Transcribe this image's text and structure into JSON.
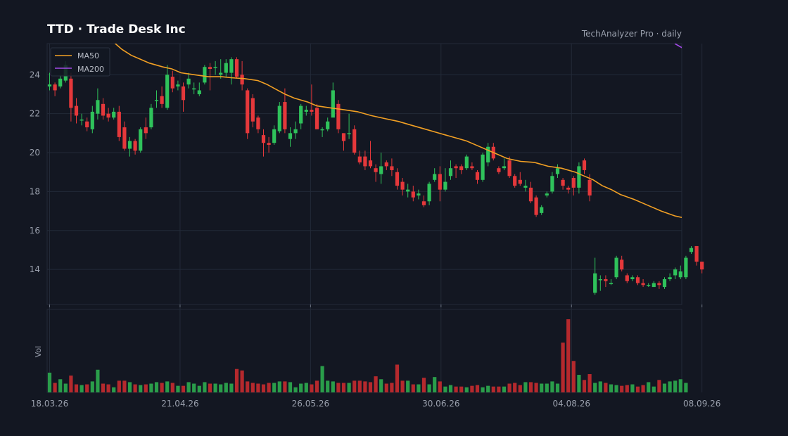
{
  "header": {
    "title": "TTD  ·  Trade Desk Inc",
    "source": "TechAnalyzer Pro · daily"
  },
  "colors": {
    "background": "#131722",
    "grid": "#232a38",
    "up": "#2fc25b",
    "down": "#e5383b",
    "ma50": "#f2a024",
    "ma200": "#a24ae8"
  },
  "chart_data": {
    "type": "candlestick",
    "symbol": "TTD",
    "interval": "daily",
    "ylim": [
      12.2,
      25.6
    ],
    "y_ticks": [
      14,
      16,
      18,
      20,
      22,
      24
    ],
    "volume_label": "Vol",
    "x_ticks": [
      {
        "index": 0,
        "label": "18.03.26"
      },
      {
        "index": 25,
        "label": "21.04.26"
      },
      {
        "index": 50,
        "label": "26.05.26"
      },
      {
        "index": 75,
        "label": "30.06.26"
      },
      {
        "index": 100,
        "label": "04.08.26"
      },
      {
        "index": 125,
        "label": "08.09.26"
      }
    ],
    "legend": [
      "MA50",
      "MA200"
    ],
    "legend_position": "top-left",
    "candles": [
      [
        23.4,
        23.5,
        24.1,
        23.2
      ],
      [
        23.5,
        23.2,
        23.6,
        22.9
      ],
      [
        23.4,
        23.8,
        24.0,
        23.3
      ],
      [
        23.7,
        24.5,
        24.7,
        23.6
      ],
      [
        23.8,
        22.3,
        24.1,
        21.6
      ],
      [
        22.4,
        21.9,
        22.8,
        21.5
      ],
      [
        21.7,
        21.7,
        22.0,
        21.4
      ],
      [
        21.6,
        21.3,
        21.8,
        21.1
      ],
      [
        21.2,
        22.1,
        22.4,
        21.0
      ],
      [
        22.0,
        22.7,
        23.3,
        21.7
      ],
      [
        22.5,
        21.9,
        22.8,
        21.7
      ],
      [
        22.0,
        21.8,
        22.3,
        21.6
      ],
      [
        21.8,
        22.1,
        22.3,
        21.7
      ],
      [
        22.1,
        20.8,
        22.4,
        20.6
      ],
      [
        21.3,
        20.2,
        21.6,
        20.1
      ],
      [
        20.2,
        20.6,
        20.8,
        19.8
      ],
      [
        20.6,
        20.1,
        20.7,
        19.9
      ],
      [
        20.1,
        21.2,
        21.3,
        20.0
      ],
      [
        21.3,
        21.0,
        21.8,
        20.7
      ],
      [
        21.3,
        22.3,
        22.5,
        21.2
      ],
      [
        22.7,
        22.7,
        23.2,
        22.3
      ],
      [
        22.9,
        22.5,
        23.4,
        22.3
      ],
      [
        22.3,
        24.0,
        24.5,
        22.2
      ],
      [
        23.9,
        23.3,
        24.2,
        23.1
      ],
      [
        23.4,
        23.5,
        23.7,
        23.2
      ],
      [
        23.4,
        22.7,
        23.6,
        22.1
      ],
      [
        23.5,
        23.8,
        24.1,
        23.3
      ],
      [
        23.3,
        23.3,
        23.6,
        23.0
      ],
      [
        23.0,
        23.2,
        23.6,
        22.9
      ],
      [
        23.6,
        24.4,
        24.5,
        23.5
      ],
      [
        24.4,
        24.3,
        24.6,
        23.2
      ],
      [
        24.4,
        24.4,
        24.7,
        24.0
      ],
      [
        24.0,
        24.1,
        24.8,
        23.8
      ],
      [
        24.1,
        24.6,
        24.8,
        23.9
      ],
      [
        24.1,
        24.8,
        24.9,
        23.5
      ],
      [
        24.8,
        23.9,
        24.9,
        23.8
      ],
      [
        24.0,
        23.5,
        24.7,
        23.2
      ],
      [
        23.2,
        21.0,
        23.3,
        20.7
      ],
      [
        22.8,
        21.6,
        23.0,
        21.3
      ],
      [
        21.8,
        21.2,
        21.9,
        21.0
      ],
      [
        20.9,
        20.5,
        21.2,
        19.8
      ],
      [
        20.5,
        20.4,
        20.8,
        20.0
      ],
      [
        20.5,
        21.2,
        21.4,
        20.4
      ],
      [
        21.1,
        22.4,
        22.6,
        21.0
      ],
      [
        22.6,
        21.2,
        23.3,
        21.0
      ],
      [
        20.7,
        21.0,
        21.3,
        20.3
      ],
      [
        21.0,
        21.2,
        21.6,
        20.7
      ],
      [
        21.5,
        22.4,
        22.5,
        21.2
      ],
      [
        22.1,
        22.2,
        22.4,
        21.9
      ],
      [
        22.2,
        22.1,
        23.5,
        21.9
      ],
      [
        22.3,
        21.2,
        22.5,
        21.2
      ],
      [
        21.2,
        21.2,
        21.3,
        20.8
      ],
      [
        21.2,
        21.6,
        21.8,
        21.1
      ],
      [
        21.8,
        23.2,
        23.6,
        21.9
      ],
      [
        22.5,
        21.2,
        22.7,
        21.0
      ],
      [
        21.0,
        20.6,
        21.0,
        20.1
      ],
      [
        21.0,
        21.0,
        22.0,
        20.7
      ],
      [
        21.2,
        20.0,
        21.4,
        19.9
      ],
      [
        19.8,
        19.5,
        20.1,
        19.4
      ],
      [
        19.8,
        19.3,
        20.1,
        19.1
      ],
      [
        19.6,
        19.3,
        20.6,
        19.2
      ],
      [
        19.2,
        19.0,
        19.4,
        18.5
      ],
      [
        18.9,
        19.3,
        20.0,
        18.4
      ],
      [
        19.5,
        19.3,
        19.6,
        19.1
      ],
      [
        19.3,
        19.1,
        19.7,
        18.8
      ],
      [
        19.0,
        18.3,
        19.2,
        18.1
      ],
      [
        18.5,
        18.1,
        18.7,
        17.8
      ],
      [
        18.0,
        18.1,
        18.4,
        17.7
      ],
      [
        18.0,
        17.7,
        18.3,
        17.5
      ],
      [
        17.8,
        17.9,
        18.1,
        17.6
      ],
      [
        17.5,
        17.3,
        17.8,
        17.2
      ],
      [
        17.5,
        18.4,
        18.5,
        17.3
      ],
      [
        18.6,
        18.9,
        19.2,
        18.5
      ],
      [
        18.9,
        18.1,
        19.3,
        17.5
      ],
      [
        18.1,
        18.5,
        19.2,
        18.0
      ],
      [
        18.8,
        19.2,
        19.6,
        18.6
      ],
      [
        19.3,
        19.2,
        19.4,
        18.7
      ],
      [
        19.3,
        19.1,
        19.4,
        18.9
      ],
      [
        19.2,
        19.8,
        19.9,
        19.1
      ],
      [
        19.3,
        19.2,
        19.5,
        19.1
      ],
      [
        19.0,
        18.6,
        19.1,
        18.4
      ],
      [
        18.6,
        19.9,
        20.0,
        18.5
      ],
      [
        19.5,
        20.3,
        20.5,
        19.3
      ],
      [
        20.3,
        19.7,
        20.5,
        19.6
      ],
      [
        19.2,
        19.0,
        19.3,
        18.9
      ],
      [
        19.2,
        19.3,
        19.7,
        19.1
      ],
      [
        19.6,
        18.8,
        19.8,
        18.7
      ],
      [
        18.8,
        18.3,
        18.9,
        18.2
      ],
      [
        18.6,
        18.4,
        19.0,
        18.3
      ],
      [
        18.2,
        18.3,
        18.6,
        18.0
      ],
      [
        18.2,
        17.5,
        18.5,
        17.4
      ],
      [
        17.7,
        16.8,
        17.8,
        16.7
      ],
      [
        16.9,
        17.2,
        17.3,
        16.8
      ],
      [
        17.8,
        17.9,
        18.0,
        17.7
      ],
      [
        18.0,
        18.8,
        19.0,
        17.9
      ],
      [
        18.9,
        19.2,
        19.4,
        18.7
      ],
      [
        18.6,
        18.3,
        18.7,
        18.1
      ],
      [
        18.2,
        18.1,
        18.3,
        17.9
      ],
      [
        18.7,
        18.2,
        18.8,
        17.8
      ],
      [
        18.2,
        19.3,
        19.5,
        17.9
      ],
      [
        19.6,
        19.1,
        19.7,
        18.9
      ],
      [
        18.6,
        17.8,
        18.9,
        17.5
      ],
      [
        12.8,
        13.8,
        14.6,
        12.7
      ],
      [
        13.5,
        13.5,
        13.7,
        12.9
      ],
      [
        13.5,
        13.4,
        13.7,
        13.1
      ],
      [
        13.3,
        13.3,
        13.5,
        13.2
      ],
      [
        13.6,
        14.6,
        14.7,
        13.5
      ],
      [
        14.5,
        14.0,
        14.7,
        13.9
      ],
      [
        13.7,
        13.4,
        13.8,
        13.3
      ],
      [
        13.5,
        13.6,
        13.7,
        13.4
      ],
      [
        13.6,
        13.3,
        13.7,
        13.2
      ],
      [
        13.3,
        13.2,
        13.5,
        13.1
      ],
      [
        13.2,
        13.2,
        13.3,
        13.1
      ],
      [
        13.1,
        13.3,
        13.4,
        13.1
      ],
      [
        13.3,
        13.2,
        13.4,
        13.0
      ],
      [
        13.1,
        13.5,
        13.6,
        13.0
      ],
      [
        13.5,
        13.6,
        13.8,
        13.4
      ],
      [
        13.7,
        14.0,
        14.1,
        13.5
      ],
      [
        13.6,
        13.9,
        14.2,
        13.5
      ],
      [
        13.6,
        14.6,
        14.7,
        13.5
      ],
      [
        14.9,
        15.1,
        15.2,
        14.8
      ],
      [
        15.2,
        14.4,
        15.2,
        14.2
      ],
      [
        14.4,
        14.0,
        14.4,
        13.8
      ]
    ],
    "volume": [
      0.27,
      0.13,
      0.18,
      0.12,
      0.23,
      0.11,
      0.1,
      0.11,
      0.15,
      0.31,
      0.12,
      0.11,
      0.07,
      0.16,
      0.16,
      0.14,
      0.11,
      0.1,
      0.11,
      0.12,
      0.14,
      0.13,
      0.15,
      0.13,
      0.09,
      0.09,
      0.14,
      0.12,
      0.09,
      0.14,
      0.12,
      0.12,
      0.11,
      0.13,
      0.12,
      0.32,
      0.3,
      0.15,
      0.13,
      0.12,
      0.11,
      0.13,
      0.13,
      0.15,
      0.15,
      0.14,
      0.07,
      0.12,
      0.13,
      0.11,
      0.16,
      0.36,
      0.16,
      0.15,
      0.13,
      0.13,
      0.13,
      0.16,
      0.16,
      0.15,
      0.14,
      0.22,
      0.18,
      0.12,
      0.13,
      0.38,
      0.16,
      0.16,
      0.11,
      0.11,
      0.2,
      0.11,
      0.21,
      0.15,
      0.08,
      0.1,
      0.08,
      0.08,
      0.07,
      0.09,
      0.1,
      0.07,
      0.09,
      0.08,
      0.08,
      0.08,
      0.12,
      0.13,
      0.1,
      0.14,
      0.14,
      0.13,
      0.12,
      0.12,
      0.15,
      0.12,
      0.68,
      1.0,
      0.43,
      0.24,
      0.17,
      0.25,
      0.13,
      0.15,
      0.13,
      0.11,
      0.1,
      0.09,
      0.1,
      0.11,
      0.08,
      0.1,
      0.14,
      0.08,
      0.17,
      0.12,
      0.15,
      0.16,
      0.18,
      0.13
    ],
    "ma50": [
      [
        14,
        25.7
      ],
      [
        16,
        25.3
      ],
      [
        18,
        25.0
      ],
      [
        20,
        24.8
      ],
      [
        22,
        24.6
      ],
      [
        25,
        24.4
      ],
      [
        27,
        24.3
      ],
      [
        29,
        24.1
      ],
      [
        32,
        24.0
      ],
      [
        35,
        23.9
      ],
      [
        38,
        23.9
      ],
      [
        40,
        23.85
      ],
      [
        43,
        23.8
      ],
      [
        46,
        23.7
      ],
      [
        48,
        23.5
      ],
      [
        50,
        23.25
      ],
      [
        52,
        23.0
      ],
      [
        54,
        22.8
      ],
      [
        57,
        22.6
      ],
      [
        59,
        22.4
      ],
      [
        62,
        22.3
      ],
      [
        65,
        22.2
      ],
      [
        68,
        22.1
      ],
      [
        71,
        21.9
      ],
      [
        74,
        21.75
      ],
      [
        77,
        21.6
      ],
      [
        80,
        21.4
      ],
      [
        83,
        21.2
      ],
      [
        86,
        21.0
      ],
      [
        89,
        20.8
      ],
      [
        92,
        20.6
      ],
      [
        95,
        20.3
      ],
      [
        98,
        20.0
      ],
      [
        101,
        19.7
      ],
      [
        104,
        19.55
      ],
      [
        107,
        19.5
      ],
      [
        110,
        19.3
      ],
      [
        113,
        19.2
      ],
      [
        116,
        19.0
      ],
      [
        118,
        18.8
      ],
      [
        120,
        18.6
      ],
      [
        122,
        18.3
      ],
      [
        124,
        18.1
      ],
      [
        126,
        17.85
      ],
      [
        129,
        17.6
      ],
      [
        132,
        17.3
      ],
      [
        135,
        17.0
      ],
      [
        138,
        16.75
      ],
      [
        141,
        16.6
      ],
      [
        143,
        16.45
      ]
    ],
    "ma200": [
      [
        138,
        25.6
      ],
      [
        141,
        25.2
      ],
      [
        144,
        24.9
      ]
    ]
  }
}
